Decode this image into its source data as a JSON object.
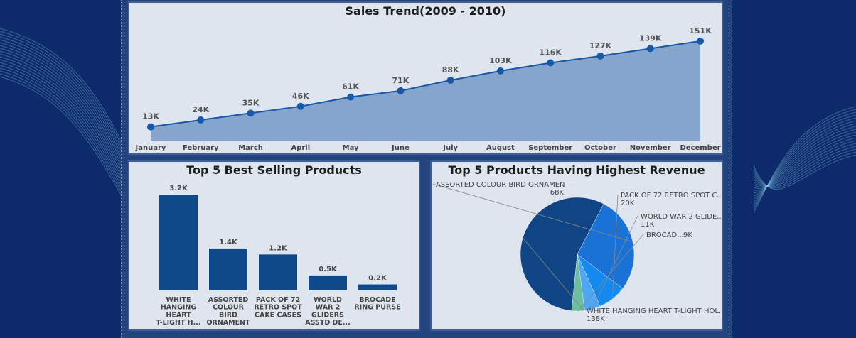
{
  "charts": [
    {
      "id": "trend",
      "type": "area",
      "title": "Sales Trend(2009 - 2010)",
      "categories": [
        "January",
        "February",
        "March",
        "April",
        "May",
        "June",
        "July",
        "August",
        "September",
        "October",
        "November",
        "December"
      ],
      "values": [
        13,
        24,
        35,
        46,
        61,
        71,
        88,
        103,
        116,
        127,
        139,
        151
      ],
      "data_labels": [
        "13K",
        "24K",
        "35K",
        "46K",
        "61K",
        "71K",
        "88K",
        "103K",
        "116K",
        "127K",
        "139K",
        "151K"
      ],
      "unit": "K",
      "ylim": [
        0,
        160
      ],
      "grid": false,
      "colors": {
        "line": "#1858a8",
        "fill": "#85a5cd",
        "point": "#1858a8"
      }
    },
    {
      "id": "best",
      "type": "bar",
      "title": "Top 5 Best Selling Products",
      "categories": [
        [
          "WHITE",
          "HANGING",
          "HEART",
          "T-LIGHT H..."
        ],
        [
          "ASSORTED",
          "COLOUR",
          "BIRD",
          "ORNAMENT"
        ],
        [
          "PACK OF 72",
          "RETRO SPOT",
          "CAKE CASES"
        ],
        [
          "WORLD",
          "WAR 2",
          "GLIDERS",
          "ASSTD DE..."
        ],
        [
          "BROCADE",
          "RING PURSE"
        ]
      ],
      "values": [
        3.2,
        1.4,
        1.2,
        0.5,
        0.2
      ],
      "data_labels": [
        "3.2K",
        "1.4K",
        "1.2K",
        "0.5K",
        "0.2K"
      ],
      "unit": "K",
      "ylim": [
        0,
        3.2
      ],
      "colors": {
        "bar": "#0e4a8a"
      }
    },
    {
      "id": "revenue",
      "type": "pie",
      "title": "Top 5 Products Having Highest Revenue",
      "slices": [
        {
          "label": "WHITE HANGING HEART T-LIGHT HOL...",
          "value": 138,
          "value_label": "138K",
          "color": "#0f4585"
        },
        {
          "label": "ASSORTED COLOUR BIRD ORNAMENT",
          "value": 68,
          "value_label": "68K",
          "color": "#1b72d6"
        },
        {
          "label": "PACK OF 72 RETRO SPOT C...",
          "value": 20,
          "value_label": "20K",
          "color": "#1489f0"
        },
        {
          "label": "WORLD WAR 2 GLIDE...",
          "value": 11,
          "value_label": "11K",
          "color": "#4fa6f2"
        },
        {
          "label": "BROCAD...",
          "value": 9,
          "value_label": "9K",
          "color": "#6bbf9f"
        }
      ],
      "unit": "K",
      "legend": "none"
    }
  ]
}
